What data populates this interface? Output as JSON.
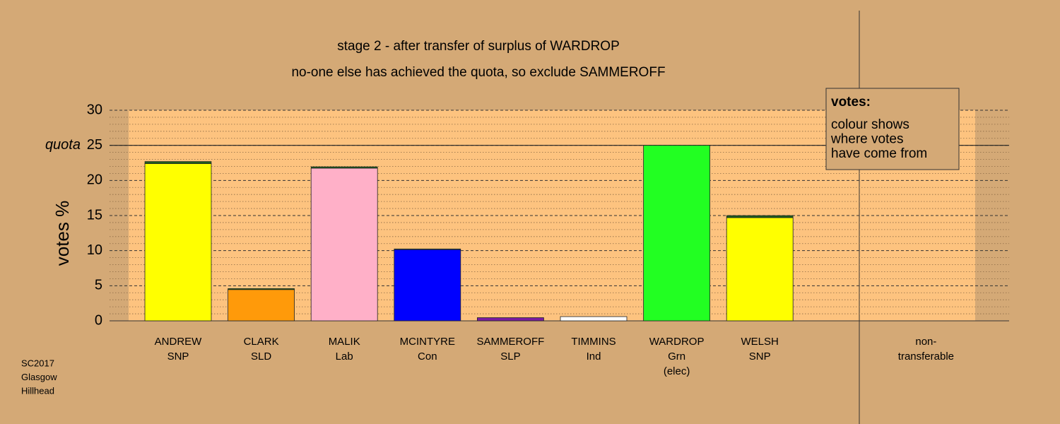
{
  "chart_data": {
    "type": "bar",
    "title": "stage 2 - after transfer of surplus of WARDROP",
    "subtitle": "no-one else has achieved the quota, so exclude SAMMEROFF",
    "y_label": "votes %",
    "categories": [
      [
        "ANDREW",
        "SNP"
      ],
      [
        "CLARK",
        "SLD"
      ],
      [
        "MALIK",
        "Lab"
      ],
      [
        "MCINTYRE",
        "Con"
      ],
      [
        "SAMMEROFF",
        "SLP"
      ],
      [
        "TIMMINS",
        "Ind"
      ],
      [
        "WARDROP",
        "Grn",
        "(elec)"
      ],
      [
        "WELSH",
        "SNP"
      ],
      [
        "non-",
        "transferable"
      ]
    ],
    "values": [
      22.4,
      4.45,
      21.75,
      10.15,
      0.45,
      0.6,
      25,
      14.7,
      0
    ],
    "colors": [
      "#ffff00",
      "#ff9a0a",
      "#ffb0c8",
      "#0000ff",
      "#7a1ca0",
      "#ffffff",
      "#22ff22",
      "#ffff00",
      "#ffffff"
    ],
    "transfer_values": [
      0.3,
      0.15,
      0.2,
      0.1,
      0,
      0,
      0,
      0.3,
      0
    ],
    "transfer_color": "#1f5a1f",
    "ylim": [
      0,
      30
    ],
    "yticks": [
      0,
      5,
      10,
      15,
      20,
      25,
      30
    ],
    "minor_yticks": [
      1,
      2,
      3,
      4,
      6,
      7,
      8,
      9,
      11,
      12,
      13,
      14,
      16,
      17,
      18,
      19,
      21,
      22,
      23,
      24,
      26,
      27,
      28,
      29
    ],
    "quota": {
      "value": 25,
      "label": "quota"
    },
    "legend": {
      "title": "votes:",
      "lines": [
        "colour shows",
        "where votes",
        "have come from"
      ]
    },
    "footnote": [
      "SC2017",
      "Glasgow",
      "Hillhead"
    ],
    "grid": true
  }
}
